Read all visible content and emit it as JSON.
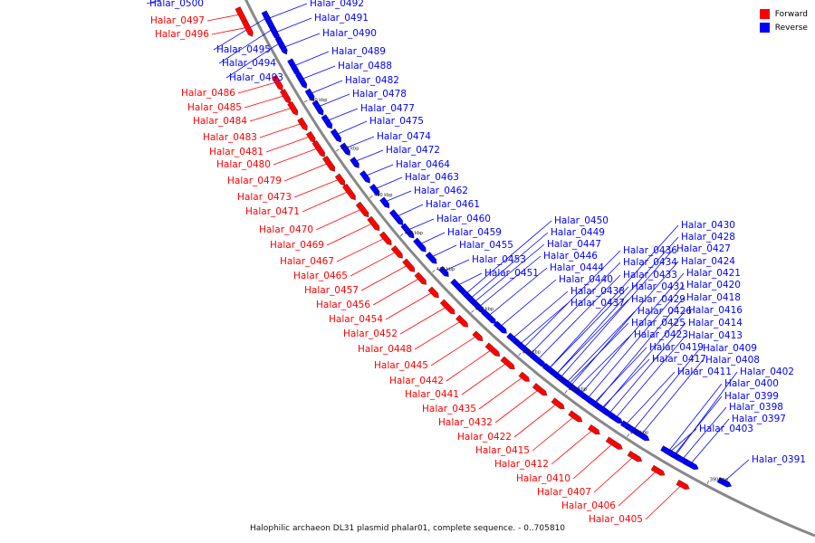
{
  "colors": {
    "forward": "#ff0000",
    "reverse": "#0000ff",
    "backbone": "#888888"
  },
  "legend": {
    "forward": "Forward",
    "reverse": "Reverse"
  },
  "caption": "Halophilic archaeon DL31 plasmid phalar01, complete sequence. - 0..705810",
  "scale_ticks": [
    "480 kbp",
    "470 kbp",
    "460 kbp",
    "450 kbp",
    "440 kbp",
    "430 kbp",
    "420 kbp",
    "410 kbp",
    "400 kbp",
    "390 kbp"
  ],
  "genes": [
    {
      "name": "Halar_0500",
      "strand": "reverse"
    },
    {
      "name": "Halar_0497",
      "strand": "forward"
    },
    {
      "name": "Halar_0496",
      "strand": "forward"
    },
    {
      "name": "Halar_0495",
      "strand": "reverse"
    },
    {
      "name": "Halar_0494",
      "strand": "reverse"
    },
    {
      "name": "Halar_0493",
      "strand": "reverse"
    },
    {
      "name": "Halar_0492",
      "strand": "reverse"
    },
    {
      "name": "Halar_0491",
      "strand": "reverse"
    },
    {
      "name": "Halar_0490",
      "strand": "reverse"
    },
    {
      "name": "Halar_0489",
      "strand": "reverse"
    },
    {
      "name": "Halar_0488",
      "strand": "reverse"
    },
    {
      "name": "Halar_0486",
      "strand": "forward"
    },
    {
      "name": "Halar_0485",
      "strand": "forward"
    },
    {
      "name": "Halar_0484",
      "strand": "forward"
    },
    {
      "name": "Halar_0483",
      "strand": "forward"
    },
    {
      "name": "Halar_0482",
      "strand": "reverse"
    },
    {
      "name": "Halar_0481",
      "strand": "forward"
    },
    {
      "name": "Halar_0480",
      "strand": "forward"
    },
    {
      "name": "Halar_0479",
      "strand": "forward"
    },
    {
      "name": "Halar_0478",
      "strand": "reverse"
    },
    {
      "name": "Halar_0477",
      "strand": "reverse"
    },
    {
      "name": "Halar_0475",
      "strand": "reverse"
    },
    {
      "name": "Halar_0474",
      "strand": "reverse"
    },
    {
      "name": "Halar_0473",
      "strand": "forward"
    },
    {
      "name": "Halar_0472",
      "strand": "reverse"
    },
    {
      "name": "Halar_0471",
      "strand": "forward"
    },
    {
      "name": "Halar_0470",
      "strand": "forward"
    },
    {
      "name": "Halar_0469",
      "strand": "forward"
    },
    {
      "name": "Halar_0467",
      "strand": "forward"
    },
    {
      "name": "Halar_0465",
      "strand": "forward"
    },
    {
      "name": "Halar_0464",
      "strand": "reverse"
    },
    {
      "name": "Halar_0463",
      "strand": "reverse"
    },
    {
      "name": "Halar_0462",
      "strand": "reverse"
    },
    {
      "name": "Halar_0461",
      "strand": "reverse"
    },
    {
      "name": "Halar_0460",
      "strand": "reverse"
    },
    {
      "name": "Halar_0459",
      "strand": "reverse"
    },
    {
      "name": "Halar_0457",
      "strand": "forward"
    },
    {
      "name": "Halar_0456",
      "strand": "forward"
    },
    {
      "name": "Halar_0455",
      "strand": "reverse"
    },
    {
      "name": "Halar_0454",
      "strand": "forward"
    },
    {
      "name": "Halar_0453",
      "strand": "reverse"
    },
    {
      "name": "Halar_0452",
      "strand": "forward"
    },
    {
      "name": "Halar_0451",
      "strand": "reverse"
    },
    {
      "name": "Halar_0450",
      "strand": "reverse"
    },
    {
      "name": "Halar_0449",
      "strand": "reverse"
    },
    {
      "name": "Halar_0448",
      "strand": "forward"
    },
    {
      "name": "Halar_0447",
      "strand": "reverse"
    },
    {
      "name": "Halar_0446",
      "strand": "reverse"
    },
    {
      "name": "Halar_0445",
      "strand": "forward"
    },
    {
      "name": "Halar_0444",
      "strand": "reverse"
    },
    {
      "name": "Halar_0442",
      "strand": "forward"
    },
    {
      "name": "Halar_0441",
      "strand": "forward"
    },
    {
      "name": "Halar_0440",
      "strand": "reverse"
    },
    {
      "name": "Halar_0438",
      "strand": "reverse"
    },
    {
      "name": "Halar_0437",
      "strand": "reverse"
    },
    {
      "name": "Halar_0436",
      "strand": "reverse"
    },
    {
      "name": "Halar_0435",
      "strand": "forward"
    },
    {
      "name": "Halar_0434",
      "strand": "reverse"
    },
    {
      "name": "Halar_0433",
      "strand": "reverse"
    },
    {
      "name": "Halar_0432",
      "strand": "forward"
    },
    {
      "name": "Halar_0431",
      "strand": "reverse"
    },
    {
      "name": "Halar_0430",
      "strand": "reverse"
    },
    {
      "name": "Halar_0429",
      "strand": "reverse"
    },
    {
      "name": "Halar_0428",
      "strand": "reverse"
    },
    {
      "name": "Halar_0427",
      "strand": "reverse"
    },
    {
      "name": "Halar_0426",
      "strand": "reverse"
    },
    {
      "name": "Halar_0425",
      "strand": "reverse"
    },
    {
      "name": "Halar_0424",
      "strand": "reverse"
    },
    {
      "name": "Halar_0423",
      "strand": "reverse"
    },
    {
      "name": "Halar_0422",
      "strand": "forward"
    },
    {
      "name": "Halar_0421",
      "strand": "reverse"
    },
    {
      "name": "Halar_0420",
      "strand": "reverse"
    },
    {
      "name": "Halar_0419",
      "strand": "reverse"
    },
    {
      "name": "Halar_0418",
      "strand": "reverse"
    },
    {
      "name": "Halar_0417",
      "strand": "reverse"
    },
    {
      "name": "Halar_0416",
      "strand": "reverse"
    },
    {
      "name": "Halar_0415",
      "strand": "forward"
    },
    {
      "name": "Halar_0414",
      "strand": "reverse"
    },
    {
      "name": "Halar_0413",
      "strand": "reverse"
    },
    {
      "name": "Halar_0412",
      "strand": "forward"
    },
    {
      "name": "Halar_0411",
      "strand": "reverse"
    },
    {
      "name": "Halar_0410",
      "strand": "forward"
    },
    {
      "name": "Halar_0409",
      "strand": "reverse"
    },
    {
      "name": "Halar_0408",
      "strand": "reverse"
    },
    {
      "name": "Halar_0407",
      "strand": "forward"
    },
    {
      "name": "Halar_0406",
      "strand": "forward"
    },
    {
      "name": "Halar_0405",
      "strand": "forward"
    },
    {
      "name": "Halar_0403",
      "strand": "reverse"
    },
    {
      "name": "Halar_0402",
      "strand": "reverse"
    },
    {
      "name": "Halar_0400",
      "strand": "reverse"
    },
    {
      "name": "Halar_0399",
      "strand": "reverse"
    },
    {
      "name": "Halar_0398",
      "strand": "reverse"
    },
    {
      "name": "Halar_0397",
      "strand": "reverse"
    },
    {
      "name": "Halar_0391",
      "strand": "reverse"
    }
  ]
}
